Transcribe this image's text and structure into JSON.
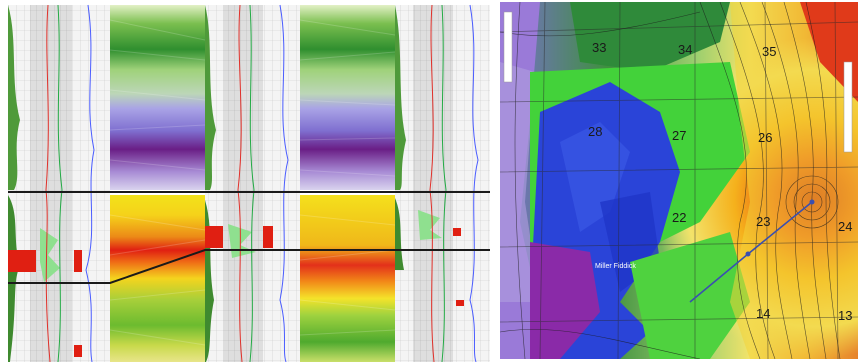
{
  "figure": {
    "left_panel": {
      "kind": "well-log correlation cross-section"
    },
    "right_panel": {
      "kind": "contoured attribute map with section grid",
      "section_numbers": [
        "33",
        "34",
        "35",
        "28",
        "27",
        "26",
        "22",
        "23",
        "24",
        "14",
        "13"
      ],
      "small_label": "Miller Fiddick",
      "colors": {
        "low": "#7a1f8f",
        "mid_low": "#1f3fd0",
        "mid": "#3fd23f",
        "mid_high": "#f2e21a",
        "high": "#d41f10"
      }
    }
  }
}
